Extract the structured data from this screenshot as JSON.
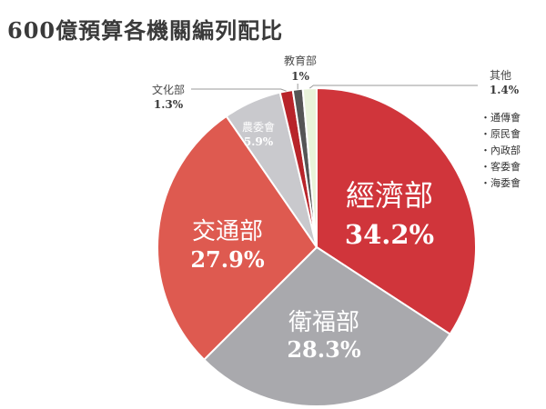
{
  "title": "600億預算各機關編列配比",
  "chart_data": {
    "type": "pie",
    "slices": [
      {
        "name": "經濟部",
        "label": "34.2%",
        "value": 34.2,
        "color": "#d0353b"
      },
      {
        "name": "衛福部",
        "label": "28.3%",
        "value": 28.3,
        "color": "#a9a9ad"
      },
      {
        "name": "交通部",
        "label": "27.9%",
        "value": 27.9,
        "color": "#de5a50"
      },
      {
        "name": "農委會",
        "label": "5.9%",
        "value": 5.9,
        "color": "#c9c9cd"
      },
      {
        "name": "文化部",
        "label": "1.3%",
        "value": 1.3,
        "color": "#b8242a"
      },
      {
        "name": "教育部",
        "label": "1%",
        "value": 1.0,
        "color": "#555555"
      },
      {
        "name": "其他",
        "label": "1.4%",
        "value": 1.4,
        "color": "#e9f3da"
      }
    ],
    "others_breakdown": [
      "・通傳會",
      "・原民會",
      "・內政部",
      "・客委會",
      "・海委會"
    ]
  }
}
